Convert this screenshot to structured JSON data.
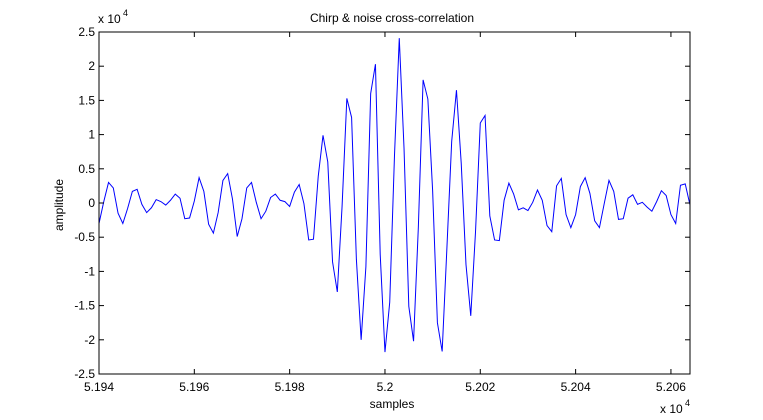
{
  "chart_data": {
    "type": "line",
    "title": "Chirp & noise cross-correlation",
    "xlabel": "samples",
    "ylabel": "amplitude",
    "x_exponent_label": "x 10",
    "x_exponent": "4",
    "y_exponent_label": "x 10",
    "y_exponent": "4",
    "xlim": [
      51940,
      52064
    ],
    "ylim": [
      -25000,
      25000
    ],
    "x_ticks": [
      51940,
      51960,
      51980,
      52000,
      52020,
      52040,
      52060
    ],
    "x_tick_labels": [
      "5.194",
      "5.196",
      "5.198",
      "5.2",
      "5.202",
      "5.204",
      "5.206"
    ],
    "y_ticks": [
      25000,
      20000,
      15000,
      10000,
      5000,
      0,
      -5000,
      -10000,
      -15000,
      -20000,
      -25000
    ],
    "y_tick_labels": [
      "2.5",
      "2",
      "1.5",
      "1",
      "0.5",
      "0",
      "-0.5",
      "-1",
      "-1.5",
      "-2",
      "-2.5"
    ],
    "grid": false,
    "series": [
      {
        "name": "cross-correlation",
        "color": "#0000ff",
        "x_start": 51940,
        "x_step": 1,
        "values": [
          -3000,
          200,
          3000,
          2200,
          -1500,
          -3000,
          -800,
          1700,
          2000,
          -200,
          -1400,
          -700,
          500,
          200,
          -300,
          400,
          1300,
          700,
          -2300,
          -2200,
          300,
          3700,
          1700,
          -3100,
          -4400,
          -1400,
          3300,
          4300,
          600,
          -4900,
          -2300,
          2200,
          3000,
          100,
          -2300,
          -1200,
          800,
          1300,
          400,
          200,
          -500,
          1600,
          2700,
          -100,
          -5400,
          -5300,
          3900,
          9900,
          6000,
          -8600,
          -13000,
          -500,
          15300,
          12500,
          -8200,
          -20000,
          -9300,
          16000,
          20300,
          -7500,
          -21800,
          -14500,
          7000,
          24100,
          8000,
          -15100,
          -20200,
          -3600,
          18000,
          15200,
          1800,
          -17500,
          -21700,
          -6500,
          9000,
          16500,
          5800,
          -9000,
          -16500,
          -4200,
          11700,
          12800,
          -1900,
          -5400,
          -5500,
          400,
          2900,
          1300,
          -1000,
          -700,
          -1100,
          100,
          1900,
          400,
          -3300,
          -4200,
          2500,
          3600,
          -1700,
          -3600,
          -1700,
          2400,
          3700,
          1400,
          -2600,
          -3600,
          -100,
          3300,
          1700,
          -2400,
          -2300,
          700,
          1200,
          -200,
          100,
          -600,
          -1200,
          200,
          1800,
          1100,
          -1700,
          -3000,
          2600,
          2800,
          -300,
          -2800,
          -2200,
          -200
        ]
      }
    ]
  }
}
